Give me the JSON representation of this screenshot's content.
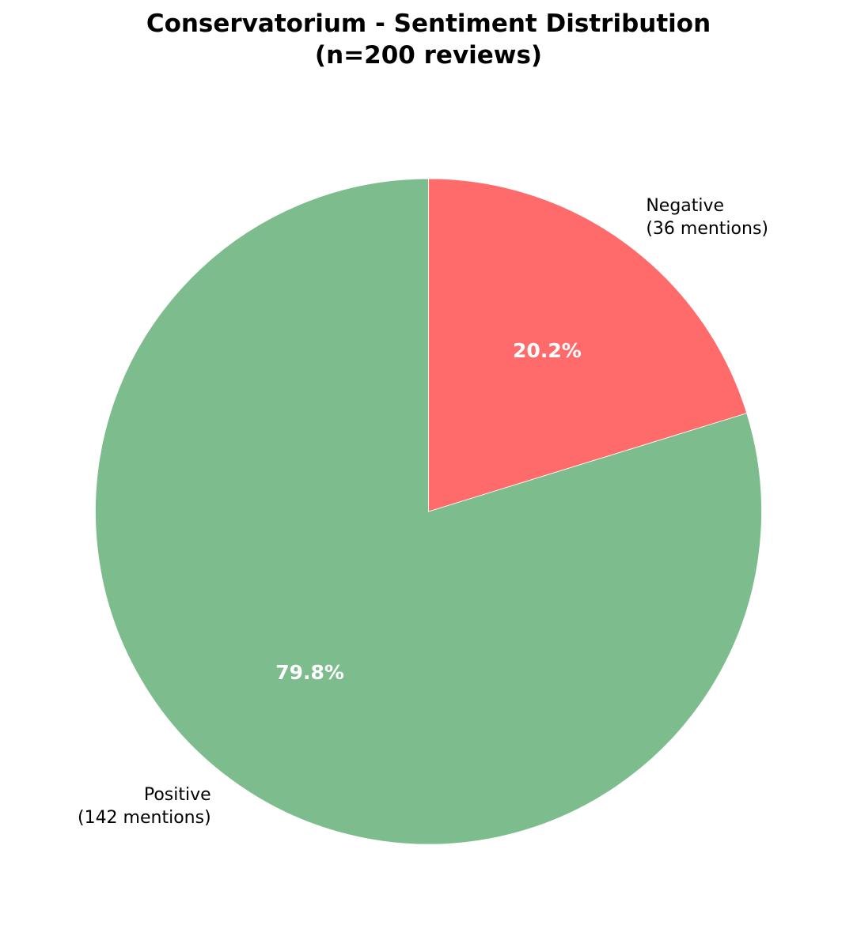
{
  "chart_data": {
    "type": "pie",
    "title_line1": "Conservatorium - Sentiment Distribution",
    "title_line2": "(n=200 reviews)",
    "slices": [
      {
        "name": "Positive",
        "count_text": "(142 mentions)",
        "value": 142,
        "pct_text": "79.8%",
        "color": "#7dbd8d"
      },
      {
        "name": "Negative",
        "count_text": "(36 mentions)",
        "value": 36,
        "pct_text": "20.2%",
        "color": "#ff6b6b"
      }
    ],
    "start_angle": "top",
    "direction": "counterclockwise"
  }
}
